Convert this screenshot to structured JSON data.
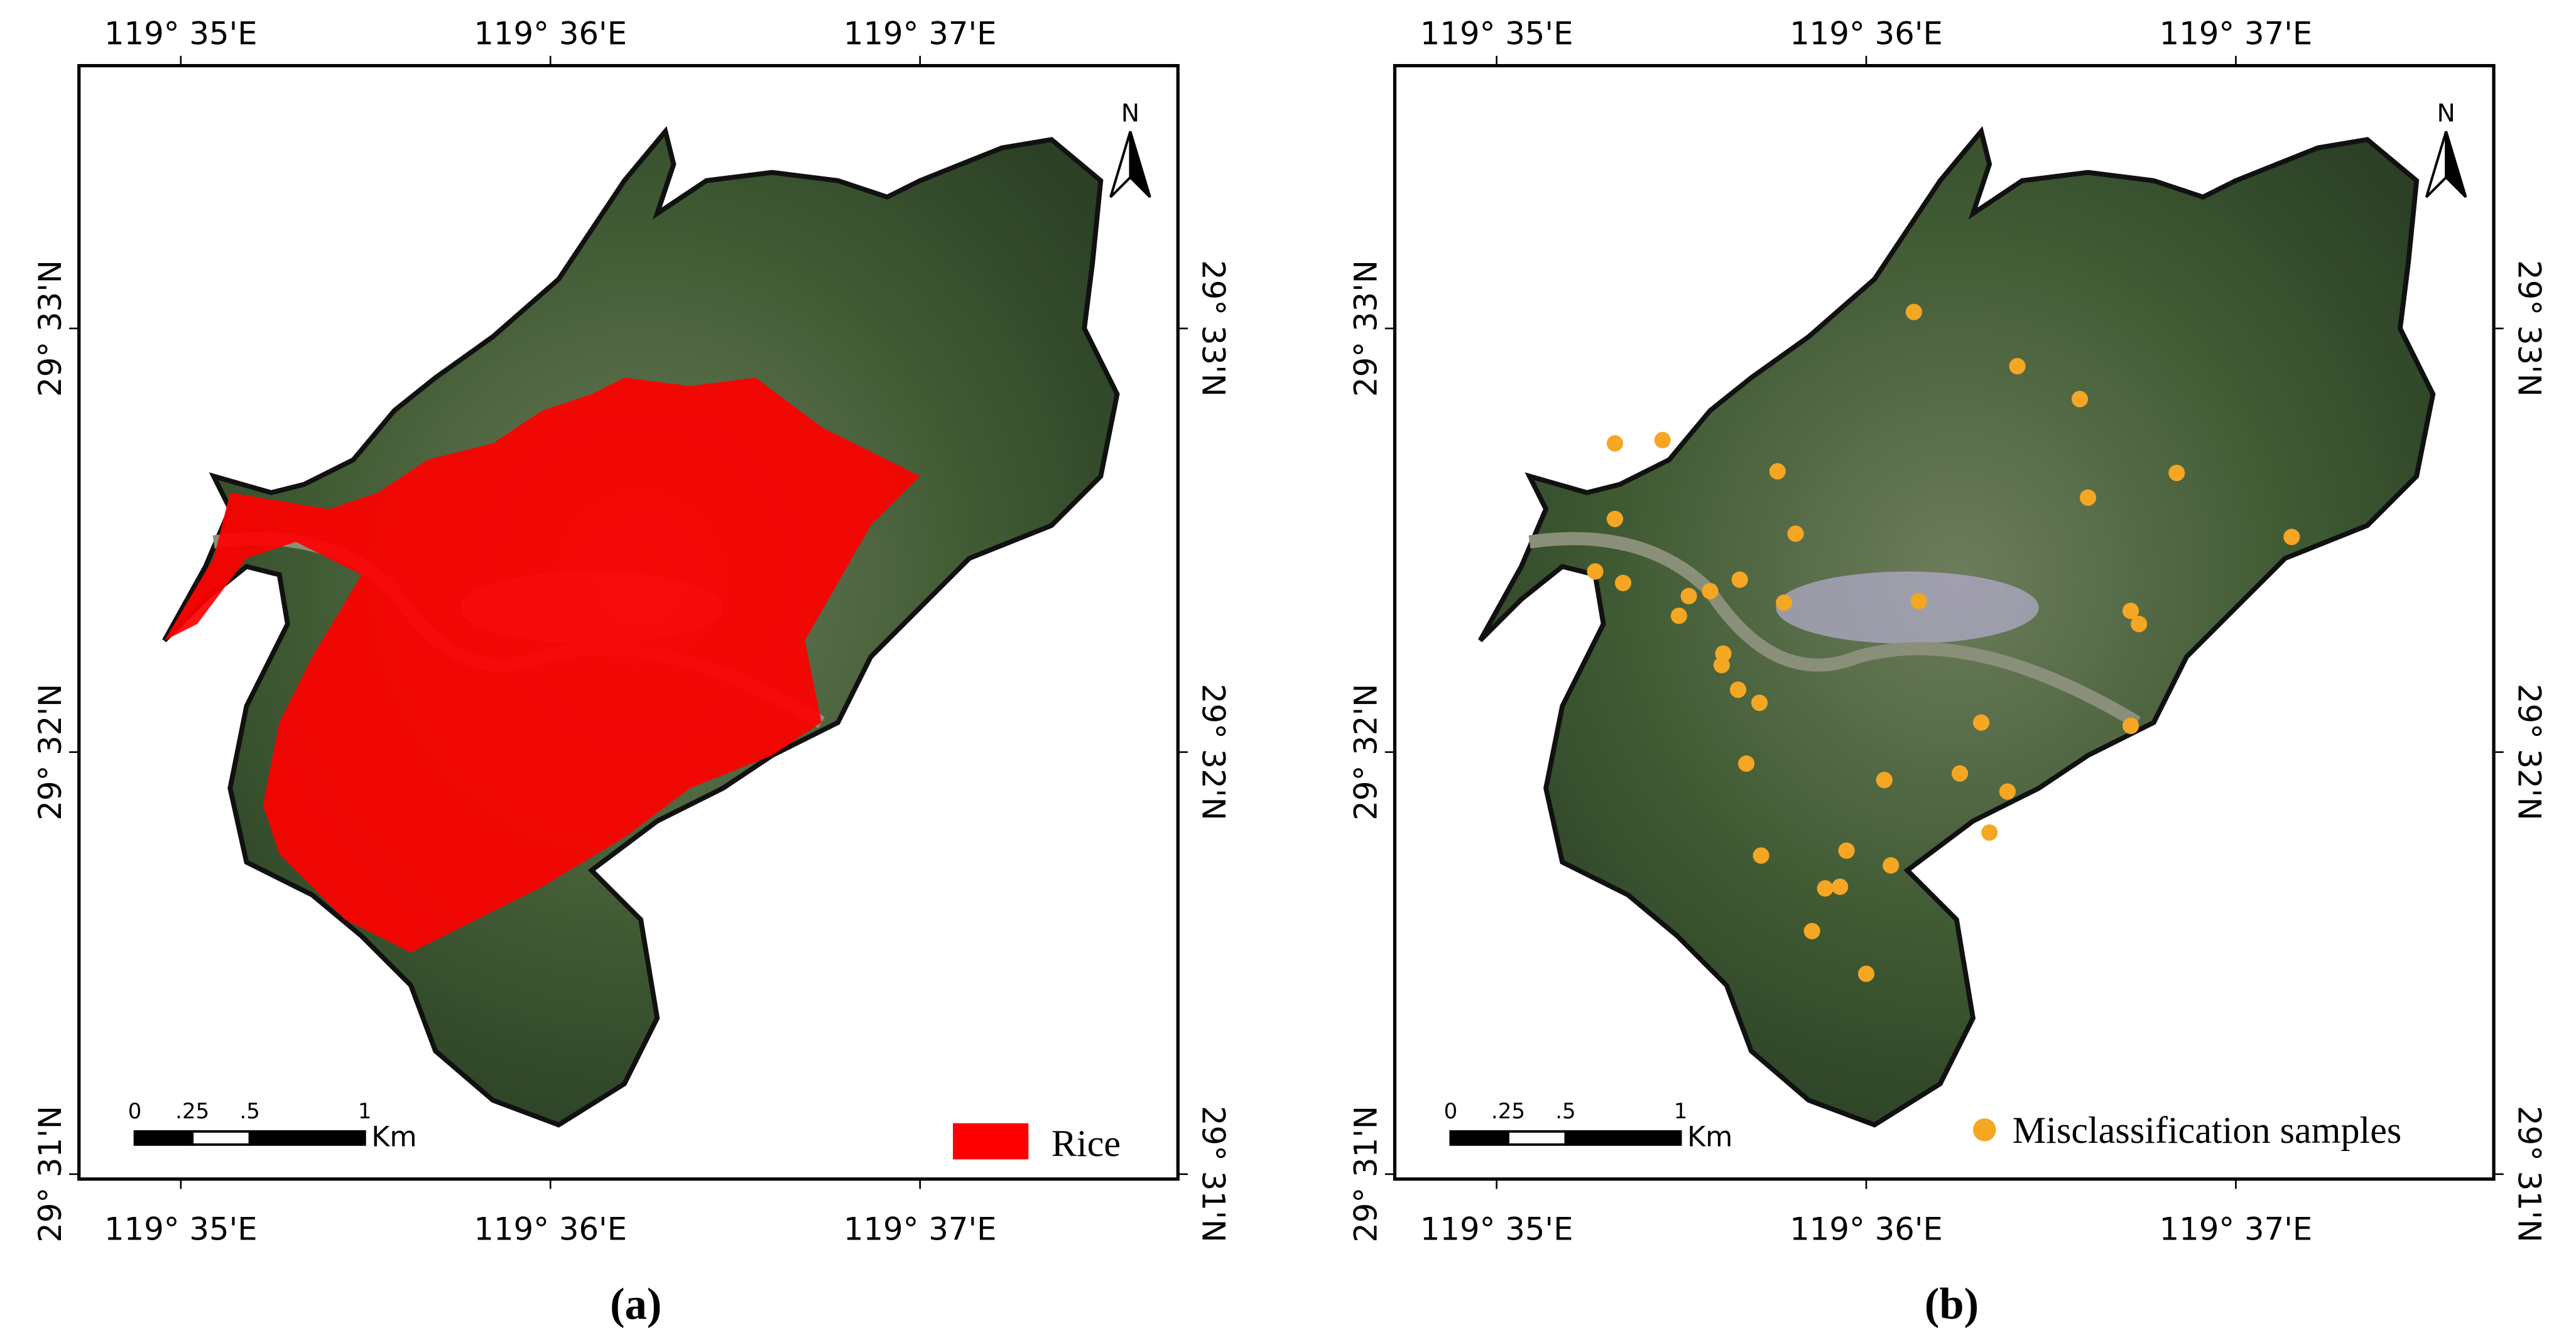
{
  "graticule": {
    "longitudes": [
      "119° 35'E",
      "119° 36'E",
      "119° 37'E"
    ],
    "latitudes": [
      "29° 33'N",
      "29° 32'N",
      "29° 31'N"
    ]
  },
  "north_arrow": "N",
  "scale_bar": {
    "ticks": [
      "0",
      ".25",
      ".5",
      "1"
    ],
    "unit": "Km"
  },
  "panels": [
    {
      "legend": "Rice",
      "caption": "(a)"
    },
    {
      "legend": "Misclassification samples",
      "caption": "(b)"
    }
  ]
}
